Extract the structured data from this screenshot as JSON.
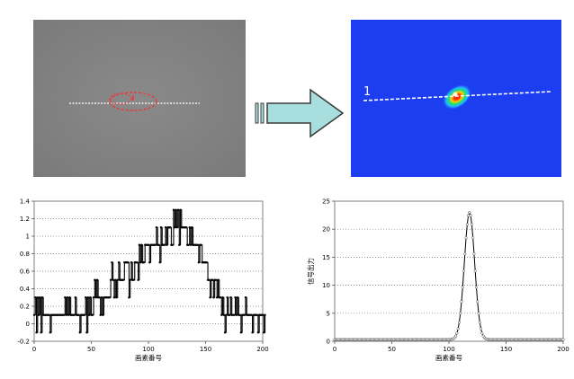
{
  "raw_image": {
    "colors": {
      "background": "#828282",
      "line": "#f0f0f0",
      "marker": "#ff2a2a"
    }
  },
  "false_color_image": {
    "line_label": "1",
    "colors": {
      "background": "#1c3ef0",
      "line": "#ffffff"
    }
  },
  "arrow": {
    "colors": {
      "fill": "#a9dede",
      "stroke": "#3a3a3a"
    }
  },
  "chart_data": [
    {
      "type": "line",
      "xlabel": "画素番号",
      "ylabel": "",
      "xlim": [
        0,
        200
      ],
      "ylim": [
        -0.2,
        1.4
      ],
      "xticks": [
        "0",
        "50",
        "100",
        "150",
        "200"
      ],
      "yticks": [
        "-0.2",
        "0",
        "0.2",
        "0.4",
        "0.6",
        "0.8",
        "1",
        "1.2",
        "1.4"
      ],
      "grid": "horizontal dotted",
      "series": [
        {
          "color": "#000000",
          "marker": "filled-circle",
          "values": [
            0.1,
            0.3,
            -0.1,
            0.3,
            0.1,
            0.3,
            -0.1,
            0.3,
            0.1,
            0.1,
            0.1,
            0.1,
            0.1,
            0.1,
            -0.1,
            0.1,
            0.1,
            0.1,
            0.1,
            0.1,
            0.1,
            0.1,
            0.1,
            0.1,
            0.1,
            0.1,
            0.1,
            0.3,
            0.1,
            0.3,
            0.1,
            0.3,
            0.1,
            0.1,
            0.1,
            0.1,
            0.3,
            0.1,
            0.1,
            0.1,
            -0.1,
            0.1,
            0.1,
            0.1,
            0.1,
            0.3,
            -0.1,
            0.3,
            0.1,
            0.3,
            0.1,
            0.1,
            0.3,
            0.5,
            0.3,
            0.5,
            0.3,
            0.3,
            0.1,
            0.3,
            0.1,
            0.3,
            0.3,
            0.3,
            0.3,
            0.3,
            0.3,
            0.5,
            0.7,
            0.5,
            0.3,
            0.5,
            0.3,
            0.5,
            0.7,
            0.5,
            0.5,
            0.5,
            0.5,
            0.7,
            0.7,
            0.7,
            0.7,
            0.3,
            0.5,
            0.7,
            0.5,
            0.5,
            0.7,
            0.7,
            0.7,
            0.5,
            0.9,
            0.7,
            0.9,
            0.7,
            0.7,
            0.9,
            0.9,
            0.9,
            0.9,
            0.7,
            0.9,
            0.9,
            0.9,
            0.9,
            0.9,
            1.1,
            0.9,
            0.9,
            0.7,
            1.1,
            0.9,
            0.9,
            0.9,
            1.1,
            0.9,
            1.1,
            1.1,
            1.1,
            0.9,
            0.9,
            1.3,
            1.1,
            1.3,
            1.1,
            1.3,
            0.9,
            1.3,
            1.1,
            1.1,
            1.1,
            1.1,
            1.1,
            0.9,
            0.9,
            1.1,
            0.9,
            1.1,
            0.9,
            0.9,
            0.9,
            0.9,
            0.9,
            0.7,
            0.9,
            0.9,
            0.7,
            0.7,
            0.7,
            0.7,
            0.7,
            0.5,
            0.5,
            0.3,
            0.5,
            0.5,
            0.3,
            0.5,
            0.5,
            0.3,
            0.5,
            0.3,
            0.3,
            0.1,
            0.3,
            0.1,
            -0.1,
            0.1,
            0.3,
            0.1,
            0.1,
            0.3,
            0.1,
            0.1,
            0.1,
            0.3,
            0.1,
            0.3,
            0.1,
            0.1,
            -0.1,
            0.1,
            0.1,
            0.1,
            0.3,
            0.1,
            0.1,
            0.1,
            0.1,
            0.1,
            -0.1,
            0.1,
            0.1,
            0.1,
            0.1,
            -0.1,
            0.1,
            0.1,
            0.1,
            0.1,
            -0.1,
            0.1
          ]
        }
      ]
    },
    {
      "type": "line",
      "xlabel": "画素番号",
      "ylabel": "信号出力",
      "xlim": [
        0,
        200
      ],
      "ylim": [
        0,
        25
      ],
      "xticks": [
        "0",
        "50",
        "100",
        "150",
        "200"
      ],
      "yticks": [
        "0",
        "5",
        "10",
        "15",
        "20",
        "25"
      ],
      "grid": "horizontal dotted",
      "series": [
        {
          "color": "#000000",
          "marker": "open-circle",
          "peak": {
            "x": 118,
            "y": 23
          },
          "baseline": 0.3,
          "sigma": 4.5
        }
      ]
    }
  ]
}
